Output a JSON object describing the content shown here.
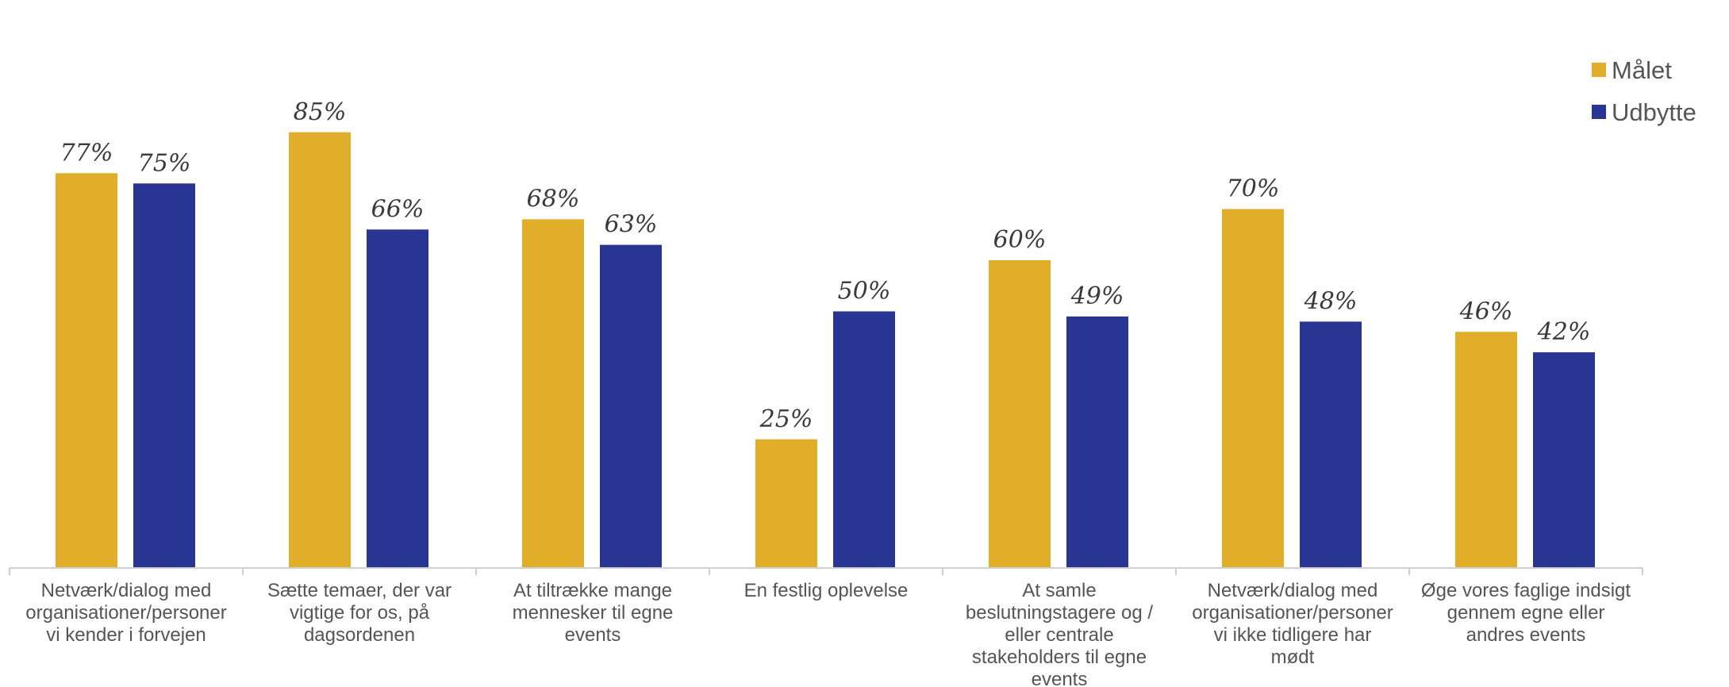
{
  "chart_data": {
    "type": "bar",
    "categories": [
      [
        "Netværk/dialog med",
        "organisationer/personer",
        "vi kender i forvejen"
      ],
      [
        "Sætte temaer, der var",
        "vigtige for os, på",
        "dagsordenen"
      ],
      [
        "At tiltrække mange",
        "mennesker til egne",
        "events"
      ],
      [
        "En festlig oplevelse"
      ],
      [
        "At samle",
        "beslutningstagere og /",
        "eller centrale",
        "stakeholders til egne",
        "events"
      ],
      [
        "Netværk/dialog med",
        "organisationer/personer",
        "vi ikke tidligere har",
        "mødt"
      ],
      [
        "Øge vores faglige indsigt",
        "gennem egne eller",
        "andres events"
      ]
    ],
    "series": [
      {
        "name": "Målet",
        "color": "#E0AE28",
        "values": [
          77,
          85,
          68,
          25,
          60,
          70,
          46
        ],
        "labels": [
          "77%",
          "85%",
          "68%",
          "25%",
          "60%",
          "70%",
          "46%"
        ]
      },
      {
        "name": "Udbytte",
        "color": "#283592",
        "values": [
          75,
          66,
          63,
          50,
          49,
          48,
          42
        ],
        "labels": [
          "75%",
          "66%",
          "63%",
          "50%",
          "49%",
          "48%",
          "42%"
        ]
      }
    ],
    "ylim": [
      0,
      100
    ],
    "grid": false,
    "legend_position": "top-right"
  }
}
